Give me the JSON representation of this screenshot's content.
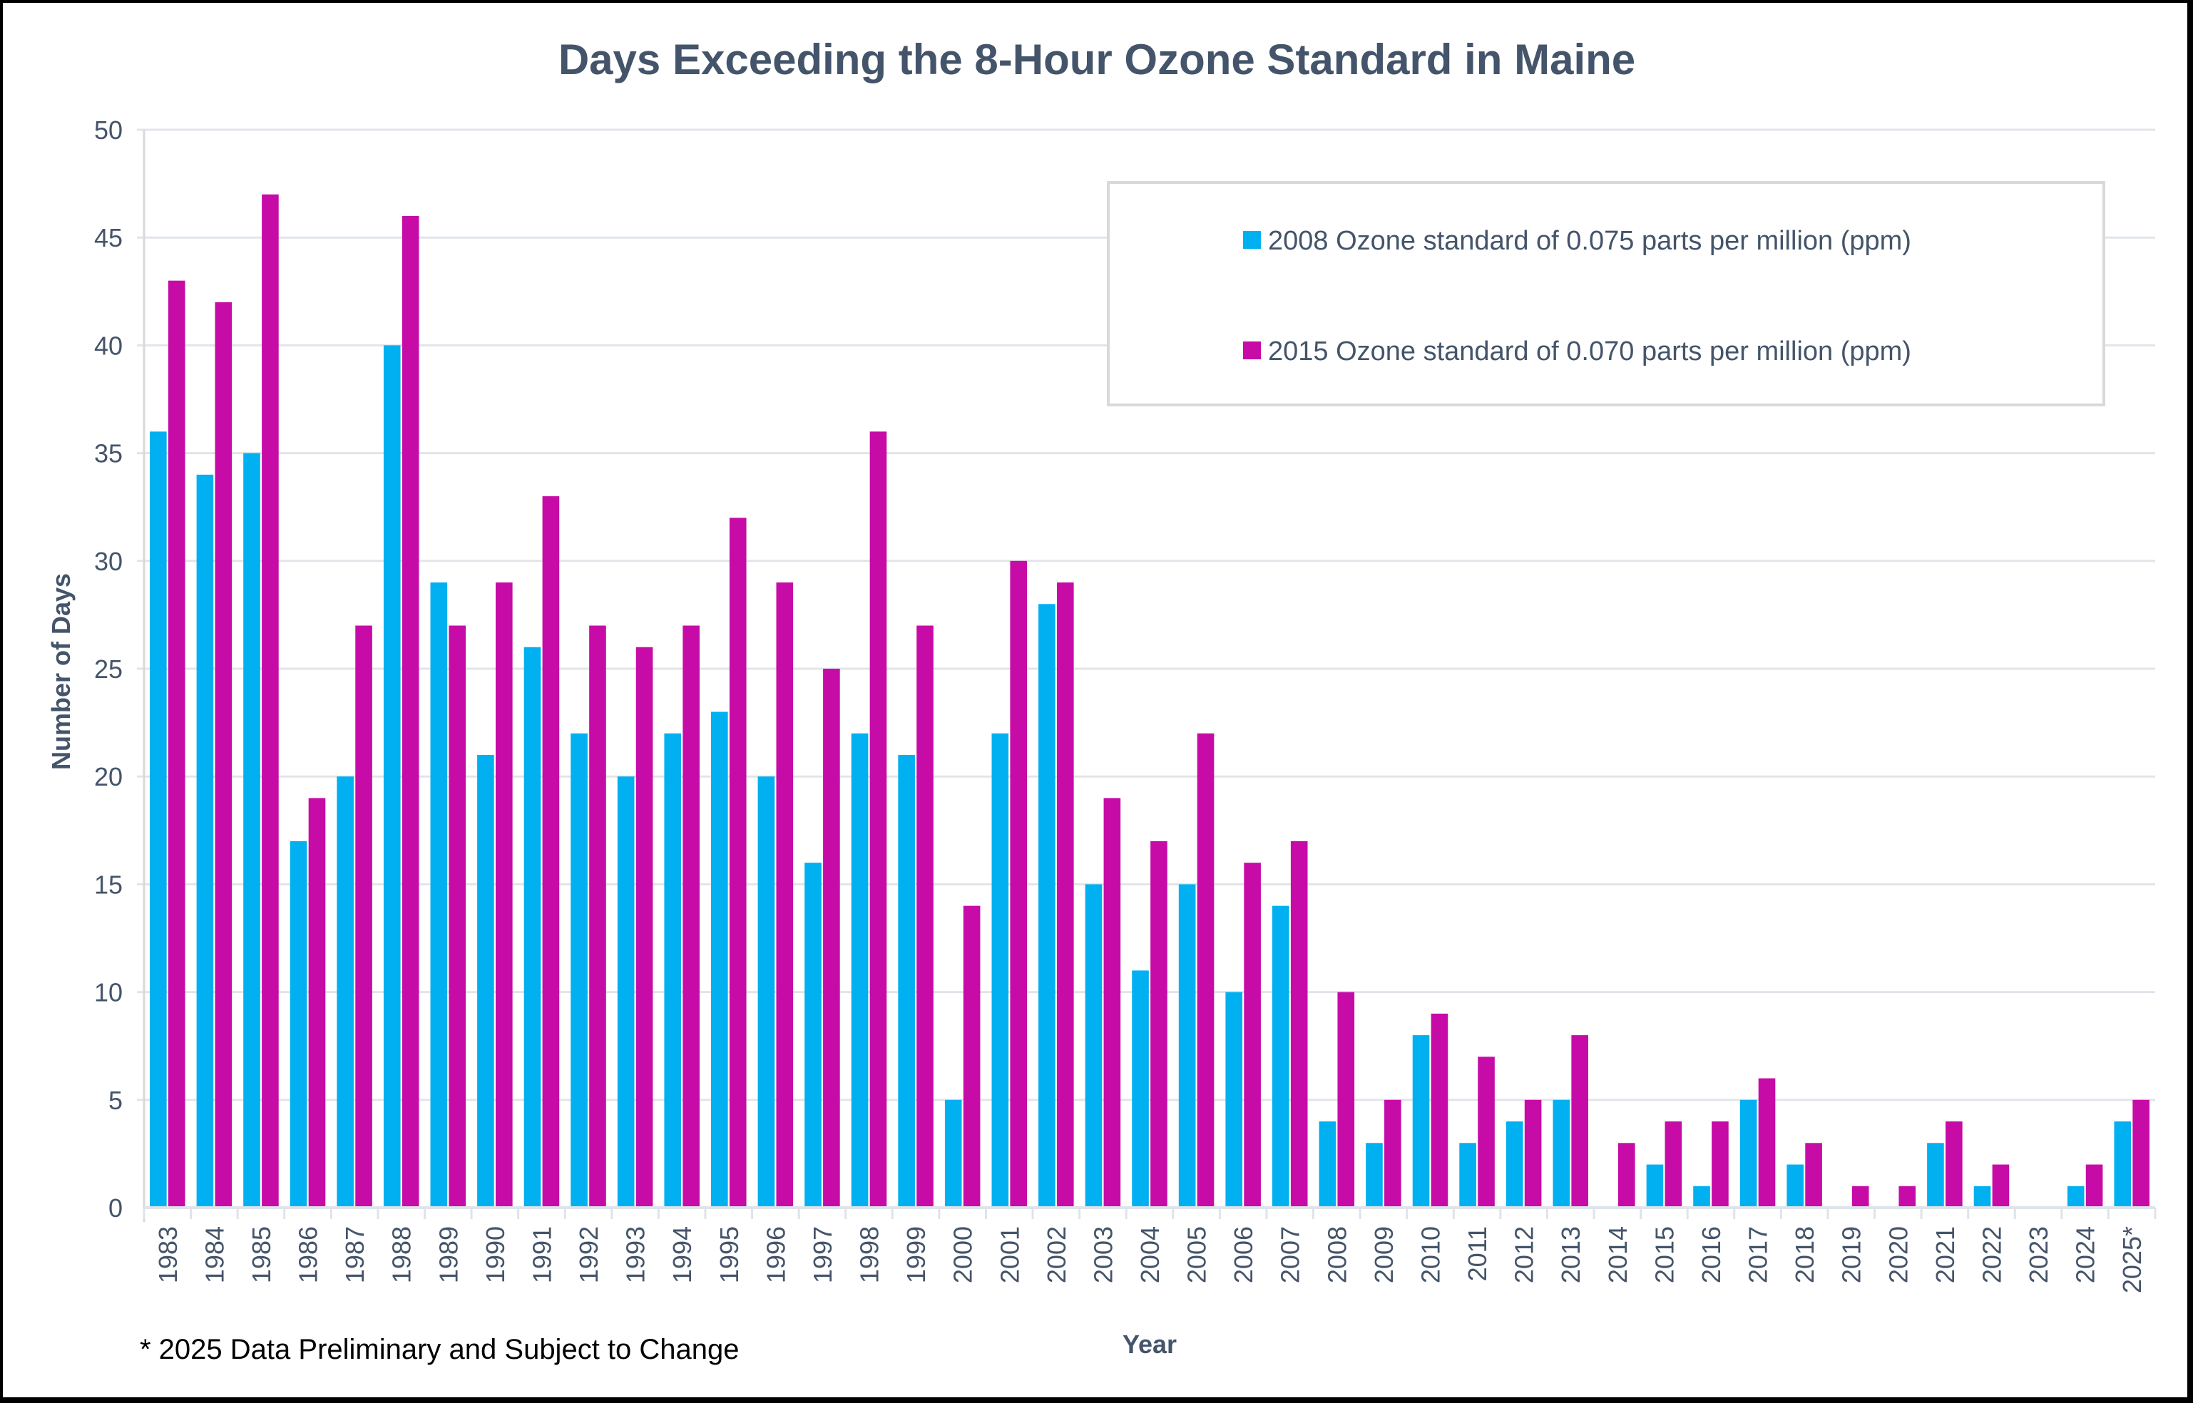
{
  "chart_data": {
    "type": "bar",
    "title": "Days Exceeding the 8-Hour Ozone Standard in Maine",
    "xlabel": "Year",
    "ylabel": "Number of Days",
    "ylim": [
      0,
      50
    ],
    "yticks": [
      0,
      5,
      10,
      15,
      20,
      25,
      30,
      35,
      40,
      45,
      50
    ],
    "grid": true,
    "legend_position": "top-right",
    "categories": [
      "1983",
      "1984",
      "1985",
      "1986",
      "1987",
      "1988",
      "1989",
      "1990",
      "1991",
      "1992",
      "1993",
      "1994",
      "1995",
      "1996",
      "1997",
      "1998",
      "1999",
      "2000",
      "2001",
      "2002",
      "2003",
      "2004",
      "2005",
      "2006",
      "2007",
      "2008",
      "2009",
      "2010",
      "2011",
      "2012",
      "2013",
      "2014",
      "2015",
      "2016",
      "2017",
      "2018",
      "2019",
      "2020",
      "2021",
      "2022",
      "2023",
      "2024",
      "2025*"
    ],
    "series": [
      {
        "name": "2008 Ozone standard of 0.075 parts per million (ppm)",
        "color": "#00B0F0",
        "values": [
          36,
          34,
          35,
          17,
          20,
          40,
          29,
          21,
          26,
          22,
          20,
          22,
          23,
          20,
          16,
          22,
          21,
          5,
          22,
          28,
          15,
          11,
          15,
          10,
          14,
          4,
          3,
          8,
          3,
          4,
          5,
          0,
          2,
          1,
          5,
          2,
          0,
          0,
          3,
          1,
          0,
          1,
          4
        ]
      },
      {
        "name": "2015 Ozone standard of 0.070 parts per million (ppm)",
        "color": "#C70BA7",
        "values": [
          43,
          42,
          47,
          19,
          27,
          46,
          27,
          29,
          33,
          27,
          26,
          27,
          32,
          29,
          25,
          36,
          27,
          14,
          30,
          29,
          19,
          17,
          22,
          16,
          17,
          10,
          5,
          9,
          7,
          5,
          8,
          3,
          4,
          4,
          6,
          3,
          1,
          1,
          4,
          2,
          0,
          2,
          5
        ]
      }
    ],
    "footnote": "* 2025 Data Preliminary and Subject to Change"
  }
}
